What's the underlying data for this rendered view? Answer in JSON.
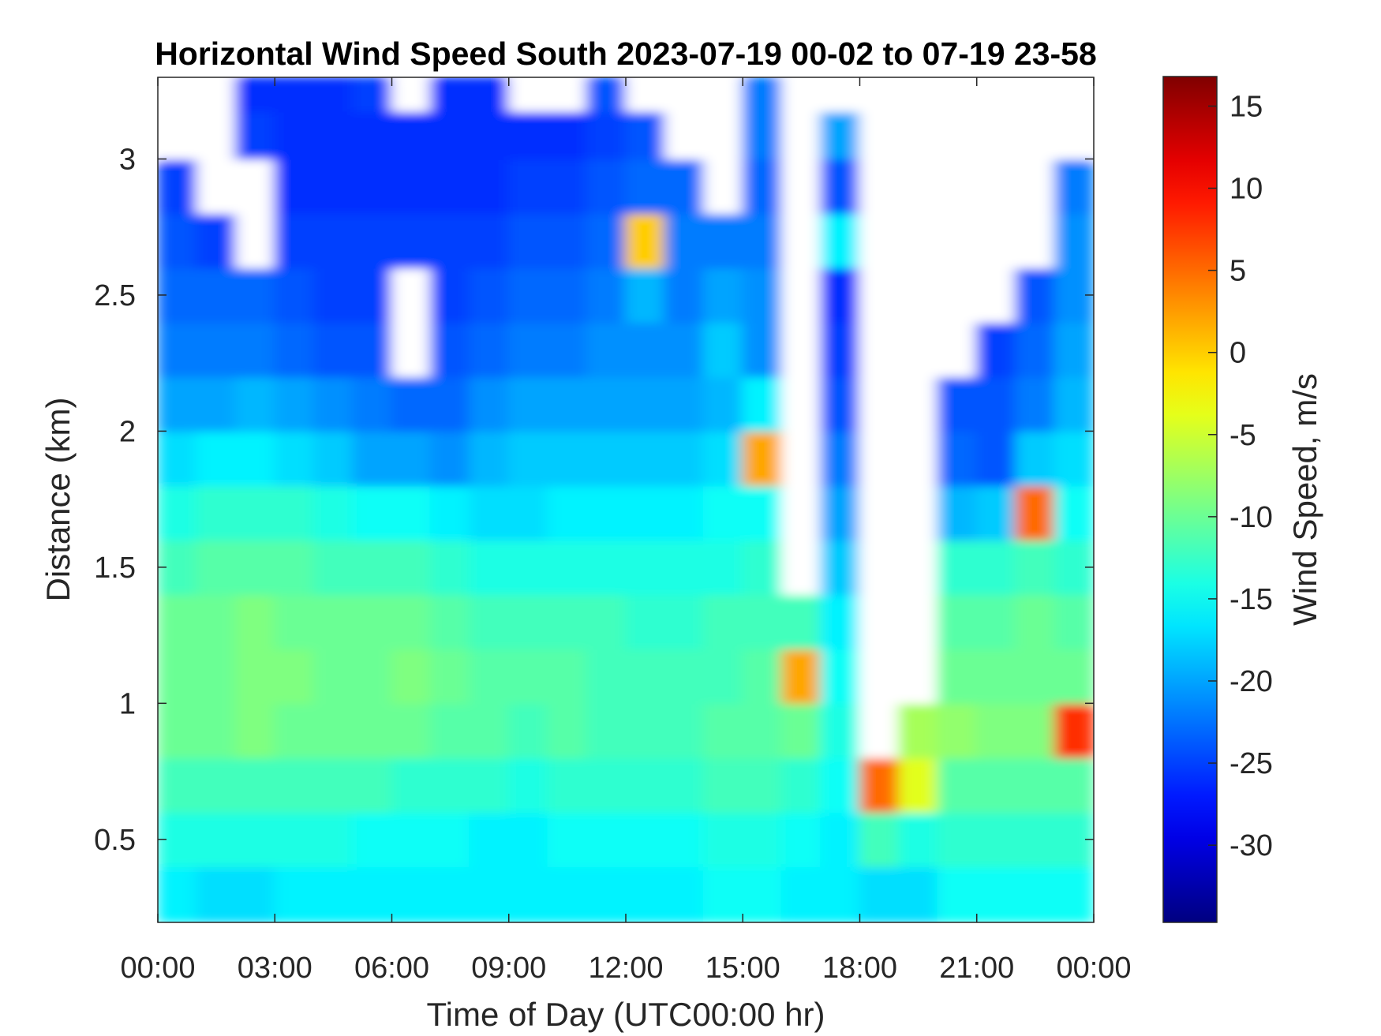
{
  "chart_data": {
    "type": "heatmap",
    "title": "Horizontal Wind Speed South 2023-07-19 00-02 to 07-19 23-58",
    "xlabel": "Time of Day (UTC00:00 hr)",
    "ylabel": "Distance (km)",
    "colorbar_label": "Wind Speed, m/s",
    "colormap": "jet",
    "xlim": [
      0,
      24
    ],
    "ylim": [
      0.195,
      3.3
    ],
    "clim": [
      -34.7,
      16.8
    ],
    "x_ticks": [
      0,
      3,
      6,
      9,
      12,
      15,
      18,
      21,
      24
    ],
    "x_tick_labels": [
      "00:00",
      "03:00",
      "06:00",
      "09:00",
      "12:00",
      "15:00",
      "18:00",
      "21:00",
      "00:00"
    ],
    "y_ticks": [
      0.5,
      1,
      1.5,
      2,
      2.5,
      3
    ],
    "y_tick_labels": [
      "0.5",
      "1",
      "1.5",
      "2",
      "2.5",
      "3"
    ],
    "colorbar_ticks": [
      15,
      10,
      5,
      0,
      -5,
      -10,
      -15,
      -20,
      -25,
      -30
    ],
    "colorbar_tick_labels": [
      "15",
      "10",
      "5",
      "0",
      "-5",
      "-10",
      "-15",
      "-20",
      "-25",
      "-30"
    ],
    "grid": false,
    "x_hours": [
      0.5,
      1.5,
      2.5,
      3.5,
      4.5,
      5.5,
      6.5,
      7.5,
      8.5,
      9.5,
      10.5,
      11.5,
      12.5,
      13.5,
      14.5,
      15.5,
      16.5,
      17.5,
      18.5,
      19.5,
      20.5,
      21.5,
      22.5,
      23.5
    ],
    "y_km": [
      0.3,
      0.5,
      0.7,
      0.9,
      1.1,
      1.3,
      1.5,
      1.7,
      1.9,
      2.1,
      2.3,
      2.5,
      2.7,
      2.9,
      3.1,
      3.25
    ],
    "values": [
      [
        -16,
        -17,
        -17,
        -16,
        -16,
        -16,
        -16,
        -16,
        -16,
        -16,
        -16,
        -16,
        -16,
        -16,
        -15,
        -15,
        -16,
        -16,
        -17,
        -17,
        -15,
        -15,
        -15,
        -15
      ],
      [
        -14,
        -14,
        -14,
        -14,
        -14,
        -15,
        -15,
        -15,
        -16,
        -16,
        -15,
        -15,
        -15,
        -15,
        -14,
        -14,
        -15,
        -16,
        -12,
        -14,
        -13,
        -13,
        -13,
        -13
      ],
      [
        -12,
        -12,
        -12,
        -12,
        -12,
        -12,
        -13,
        -13,
        -13,
        -14,
        -13,
        -13,
        -13,
        -13,
        -12,
        -12,
        -13,
        -15,
        5,
        -4,
        -11,
        -11,
        -11,
        -11
      ],
      [
        -10,
        -10,
        -9,
        -10,
        -10,
        -10,
        -10,
        -11,
        -11,
        -12,
        -11,
        -12,
        -12,
        -12,
        -11,
        -11,
        -10,
        -14,
        null,
        -7,
        -8,
        -9,
        -9,
        8
      ],
      [
        -10,
        -10,
        -9,
        -9,
        -10,
        -10,
        -9,
        -10,
        -11,
        -11,
        -11,
        -12,
        -12,
        -12,
        -12,
        -11,
        2,
        -15,
        null,
        null,
        -10,
        -10,
        -10,
        -10
      ],
      [
        -10,
        -10,
        -9,
        -10,
        -10,
        -10,
        -10,
        -11,
        -12,
        -12,
        -12,
        -12,
        -13,
        -13,
        -12,
        -12,
        -12,
        -16,
        null,
        null,
        -11,
        -11,
        -10,
        -11
      ],
      [
        -12,
        -11,
        -11,
        -11,
        -12,
        -12,
        -12,
        -13,
        -14,
        -14,
        -14,
        -14,
        -14,
        -14,
        -14,
        -13,
        null,
        -18,
        null,
        null,
        -13,
        -13,
        -12,
        -13
      ],
      [
        -14,
        -13,
        -13,
        -13,
        -14,
        -15,
        -15,
        -16,
        -17,
        -17,
        -16,
        -16,
        -16,
        -16,
        -15,
        -15,
        null,
        -20,
        null,
        null,
        -19,
        -18,
        5,
        -15
      ],
      [
        -17,
        -16,
        -16,
        -17,
        -18,
        -20,
        -20,
        -21,
        -19,
        -18,
        -18,
        -18,
        -18,
        -18,
        -17,
        2,
        null,
        -22,
        null,
        null,
        -23,
        -24,
        -18,
        -17
      ],
      [
        -20,
        -20,
        -19,
        -20,
        -21,
        -22,
        -23,
        -23,
        -21,
        -20,
        -20,
        -20,
        -20,
        -20,
        -19,
        -16,
        null,
        -24,
        null,
        null,
        -24,
        -24,
        -22,
        -19
      ],
      [
        -22,
        -22,
        -22,
        -23,
        -24,
        -24,
        null,
        -24,
        -23,
        -22,
        -22,
        -21,
        -21,
        -21,
        -18,
        -21,
        null,
        -25,
        null,
        null,
        null,
        -25,
        -23,
        -20
      ],
      [
        -23,
        -23,
        -23,
        -24,
        -25,
        -25,
        null,
        -25,
        -24,
        -23,
        -23,
        -22,
        -19,
        -22,
        -20,
        -21,
        null,
        -26,
        null,
        null,
        null,
        null,
        -24,
        -21
      ],
      [
        -24,
        -25,
        null,
        -25,
        -25,
        -25,
        -25,
        -25,
        -25,
        -24,
        -24,
        -23,
        0,
        -22,
        -22,
        -22,
        null,
        -16,
        null,
        null,
        null,
        null,
        null,
        -21
      ],
      [
        -25,
        null,
        null,
        -26,
        -26,
        -26,
        -26,
        -26,
        -26,
        -25,
        -25,
        -24,
        -23,
        -23,
        null,
        -23,
        null,
        -24,
        null,
        null,
        null,
        null,
        null,
        -22
      ],
      [
        null,
        null,
        -25,
        -26,
        -26,
        -26,
        -26,
        -26,
        -26,
        -26,
        -26,
        -25,
        -24,
        null,
        null,
        -22,
        null,
        -20,
        null,
        null,
        null,
        null,
        null,
        null
      ],
      [
        null,
        null,
        -26,
        -26,
        -26,
        -25,
        null,
        -26,
        -26,
        null,
        null,
        -24,
        null,
        null,
        null,
        -22,
        null,
        null,
        null,
        null,
        null,
        null,
        null,
        null
      ]
    ]
  }
}
